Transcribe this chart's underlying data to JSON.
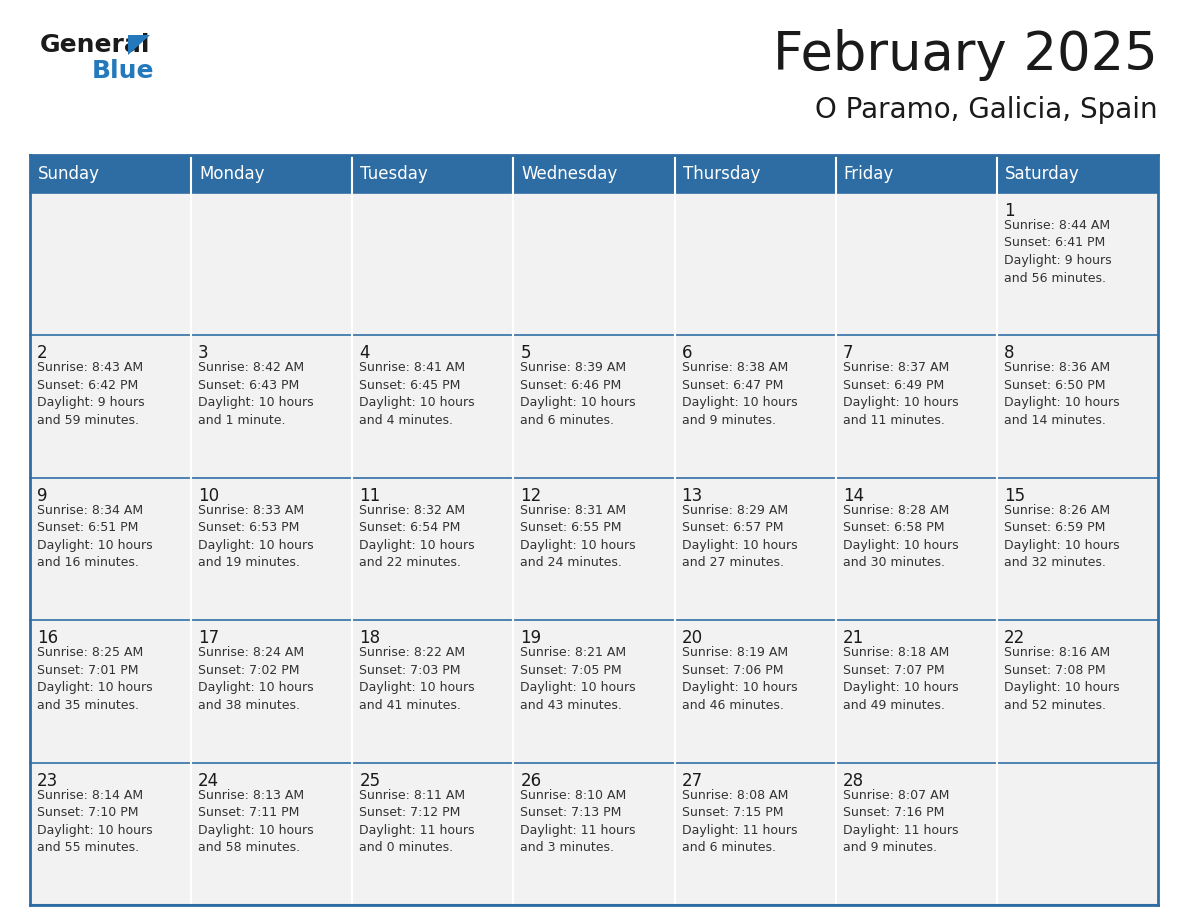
{
  "title": "February 2025",
  "subtitle": "O Paramo, Galicia, Spain",
  "header_color": "#2E6DA4",
  "header_text_color": "#FFFFFF",
  "cell_bg_color": "#F2F2F2",
  "border_color": "#2E6DA4",
  "day_names": [
    "Sunday",
    "Monday",
    "Tuesday",
    "Wednesday",
    "Thursday",
    "Friday",
    "Saturday"
  ],
  "weeks": [
    [
      {
        "day": "",
        "info": ""
      },
      {
        "day": "",
        "info": ""
      },
      {
        "day": "",
        "info": ""
      },
      {
        "day": "",
        "info": ""
      },
      {
        "day": "",
        "info": ""
      },
      {
        "day": "",
        "info": ""
      },
      {
        "day": "1",
        "info": "Sunrise: 8:44 AM\nSunset: 6:41 PM\nDaylight: 9 hours\nand 56 minutes."
      }
    ],
    [
      {
        "day": "2",
        "info": "Sunrise: 8:43 AM\nSunset: 6:42 PM\nDaylight: 9 hours\nand 59 minutes."
      },
      {
        "day": "3",
        "info": "Sunrise: 8:42 AM\nSunset: 6:43 PM\nDaylight: 10 hours\nand 1 minute."
      },
      {
        "day": "4",
        "info": "Sunrise: 8:41 AM\nSunset: 6:45 PM\nDaylight: 10 hours\nand 4 minutes."
      },
      {
        "day": "5",
        "info": "Sunrise: 8:39 AM\nSunset: 6:46 PM\nDaylight: 10 hours\nand 6 minutes."
      },
      {
        "day": "6",
        "info": "Sunrise: 8:38 AM\nSunset: 6:47 PM\nDaylight: 10 hours\nand 9 minutes."
      },
      {
        "day": "7",
        "info": "Sunrise: 8:37 AM\nSunset: 6:49 PM\nDaylight: 10 hours\nand 11 minutes."
      },
      {
        "day": "8",
        "info": "Sunrise: 8:36 AM\nSunset: 6:50 PM\nDaylight: 10 hours\nand 14 minutes."
      }
    ],
    [
      {
        "day": "9",
        "info": "Sunrise: 8:34 AM\nSunset: 6:51 PM\nDaylight: 10 hours\nand 16 minutes."
      },
      {
        "day": "10",
        "info": "Sunrise: 8:33 AM\nSunset: 6:53 PM\nDaylight: 10 hours\nand 19 minutes."
      },
      {
        "day": "11",
        "info": "Sunrise: 8:32 AM\nSunset: 6:54 PM\nDaylight: 10 hours\nand 22 minutes."
      },
      {
        "day": "12",
        "info": "Sunrise: 8:31 AM\nSunset: 6:55 PM\nDaylight: 10 hours\nand 24 minutes."
      },
      {
        "day": "13",
        "info": "Sunrise: 8:29 AM\nSunset: 6:57 PM\nDaylight: 10 hours\nand 27 minutes."
      },
      {
        "day": "14",
        "info": "Sunrise: 8:28 AM\nSunset: 6:58 PM\nDaylight: 10 hours\nand 30 minutes."
      },
      {
        "day": "15",
        "info": "Sunrise: 8:26 AM\nSunset: 6:59 PM\nDaylight: 10 hours\nand 32 minutes."
      }
    ],
    [
      {
        "day": "16",
        "info": "Sunrise: 8:25 AM\nSunset: 7:01 PM\nDaylight: 10 hours\nand 35 minutes."
      },
      {
        "day": "17",
        "info": "Sunrise: 8:24 AM\nSunset: 7:02 PM\nDaylight: 10 hours\nand 38 minutes."
      },
      {
        "day": "18",
        "info": "Sunrise: 8:22 AM\nSunset: 7:03 PM\nDaylight: 10 hours\nand 41 minutes."
      },
      {
        "day": "19",
        "info": "Sunrise: 8:21 AM\nSunset: 7:05 PM\nDaylight: 10 hours\nand 43 minutes."
      },
      {
        "day": "20",
        "info": "Sunrise: 8:19 AM\nSunset: 7:06 PM\nDaylight: 10 hours\nand 46 minutes."
      },
      {
        "day": "21",
        "info": "Sunrise: 8:18 AM\nSunset: 7:07 PM\nDaylight: 10 hours\nand 49 minutes."
      },
      {
        "day": "22",
        "info": "Sunrise: 8:16 AM\nSunset: 7:08 PM\nDaylight: 10 hours\nand 52 minutes."
      }
    ],
    [
      {
        "day": "23",
        "info": "Sunrise: 8:14 AM\nSunset: 7:10 PM\nDaylight: 10 hours\nand 55 minutes."
      },
      {
        "day": "24",
        "info": "Sunrise: 8:13 AM\nSunset: 7:11 PM\nDaylight: 10 hours\nand 58 minutes."
      },
      {
        "day": "25",
        "info": "Sunrise: 8:11 AM\nSunset: 7:12 PM\nDaylight: 11 hours\nand 0 minutes."
      },
      {
        "day": "26",
        "info": "Sunrise: 8:10 AM\nSunset: 7:13 PM\nDaylight: 11 hours\nand 3 minutes."
      },
      {
        "day": "27",
        "info": "Sunrise: 8:08 AM\nSunset: 7:15 PM\nDaylight: 11 hours\nand 6 minutes."
      },
      {
        "day": "28",
        "info": "Sunrise: 8:07 AM\nSunset: 7:16 PM\nDaylight: 11 hours\nand 9 minutes."
      },
      {
        "day": "",
        "info": ""
      }
    ]
  ],
  "logo_color_general": "#1a1a1a",
  "logo_color_blue": "#2479BD",
  "logo_triangle_color": "#2479BD",
  "title_fontsize": 38,
  "subtitle_fontsize": 20,
  "day_header_fontsize": 12,
  "day_number_fontsize": 12,
  "info_fontsize": 9
}
